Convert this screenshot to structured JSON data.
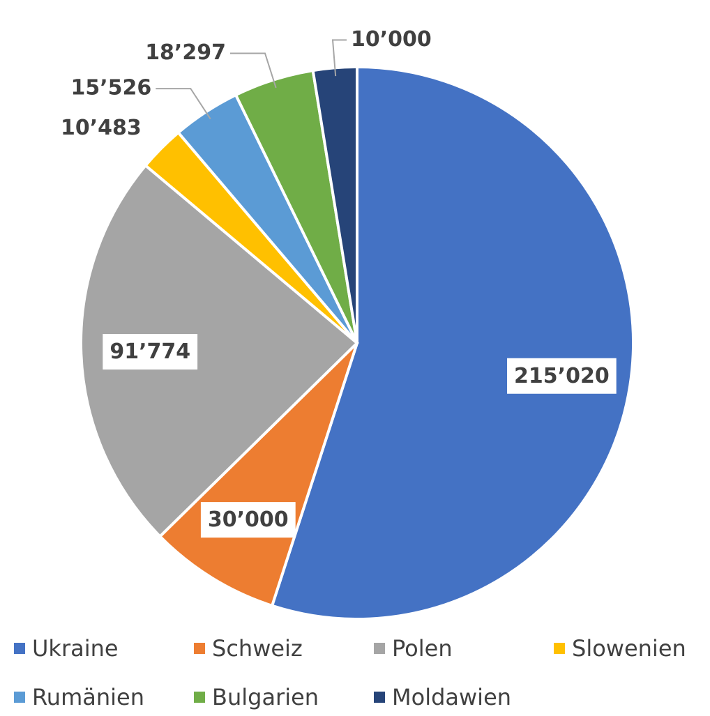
{
  "chart_data": {
    "type": "pie",
    "categories": [
      "Ukraine",
      "Schweiz",
      "Polen",
      "Slowenien",
      "Rumänien",
      "Bulgarien",
      "Moldawien"
    ],
    "values": [
      215020,
      30000,
      91774,
      10483,
      15526,
      18297,
      10000
    ],
    "value_labels": [
      "215’020",
      "30’000",
      "91’774",
      "10’483",
      "15’526",
      "18’297",
      "10’000"
    ],
    "colors": [
      "#4472c4",
      "#ed7d31",
      "#a5a5a5",
      "#ffc000",
      "#5b9bd5",
      "#70ad47",
      "#264478"
    ],
    "legend": "bottom"
  }
}
